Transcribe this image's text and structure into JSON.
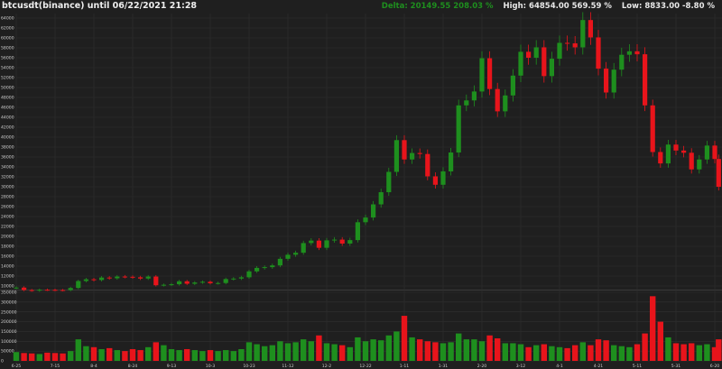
{
  "header": {
    "title": "btcusdt(binance) until 06/22/2021 21:28",
    "delta": "Delta: 20149.55 208.03 %",
    "high": "High: 64854.00 569.59 %",
    "low": "Low: 8833.00 -8.80 %"
  },
  "colors": {
    "background": "#1f1f1f",
    "grid": "#303030",
    "up": "#1e8f1e",
    "down": "#e8141b",
    "delta": "#1e8f1e"
  },
  "chart_data": [
    {
      "type": "candlestick",
      "title": "btcusdt(binance) until 06/22/2021 21:28",
      "ylim": [
        8833,
        64854
      ],
      "grid": true,
      "y_ticks": [
        10000,
        12000,
        14000,
        16000,
        18000,
        20000,
        22000,
        24000,
        26000,
        28000,
        30000,
        32000,
        34000,
        36000,
        38000,
        40000,
        42000,
        44000,
        46000,
        48000,
        50000,
        52000,
        54000,
        56000,
        58000,
        60000,
        62000,
        64000
      ],
      "x_ticks": [
        {
          "label": "6-25",
          "date": "2020-06-25"
        },
        {
          "label": "7-15",
          "date": "2020-07-15"
        },
        {
          "label": "8-4",
          "date": "2020-08-04"
        },
        {
          "label": "8-24",
          "date": "2020-08-24"
        },
        {
          "label": "9-13",
          "date": "2020-09-13"
        },
        {
          "label": "10-3",
          "date": "2020-10-03"
        },
        {
          "label": "10-23",
          "date": "2020-10-23"
        },
        {
          "label": "11-12",
          "date": "2020-11-12"
        },
        {
          "label": "12-2",
          "date": "2020-12-02"
        },
        {
          "label": "12-22",
          "date": "2020-12-22"
        },
        {
          "label": "1-11",
          "date": "2021-01-11"
        },
        {
          "label": "1-31",
          "date": "2021-01-31"
        },
        {
          "label": "2-20",
          "date": "2021-02-20"
        },
        {
          "label": "3-12",
          "date": "2021-03-12"
        },
        {
          "label": "4-1",
          "date": "2021-04-01"
        },
        {
          "label": "4-21",
          "date": "2021-04-21"
        },
        {
          "label": "5-11",
          "date": "2021-05-11"
        },
        {
          "label": "5-31",
          "date": "2021-05-31"
        },
        {
          "label": "6-20",
          "date": "2021-06-20"
        }
      ],
      "candles": [
        [
          "2020-06-25",
          9680,
          45000
        ],
        [
          "2020-06-29",
          9180,
          40000
        ],
        [
          "2020-07-03",
          9070,
          38000
        ],
        [
          "2020-07-07",
          9250,
          35000
        ],
        [
          "2020-07-11",
          9230,
          42000
        ],
        [
          "2020-07-15",
          9190,
          40000
        ],
        [
          "2020-07-19",
          9170,
          38000
        ],
        [
          "2020-07-23",
          9600,
          50000
        ],
        [
          "2020-07-27",
          11000,
          110000
        ],
        [
          "2020-07-31",
          11350,
          75000
        ],
        [
          "2020-08-04",
          11200,
          70000
        ],
        [
          "2020-08-08",
          11700,
          60000
        ],
        [
          "2020-08-12",
          11550,
          65000
        ],
        [
          "2020-08-16",
          11900,
          55000
        ],
        [
          "2020-08-20",
          11850,
          50000
        ],
        [
          "2020-08-24",
          11750,
          60000
        ],
        [
          "2020-08-28",
          11500,
          55000
        ],
        [
          "2020-09-01",
          11900,
          70000
        ],
        [
          "2020-09-05",
          10150,
          95000
        ],
        [
          "2020-09-09",
          10250,
          80000
        ],
        [
          "2020-09-13",
          10350,
          60000
        ],
        [
          "2020-09-17",
          10950,
          55000
        ],
        [
          "2020-09-21",
          10450,
          60000
        ],
        [
          "2020-09-25",
          10700,
          55000
        ],
        [
          "2020-09-29",
          10850,
          50000
        ],
        [
          "2020-10-03",
          10550,
          55000
        ],
        [
          "2020-10-07",
          10600,
          50000
        ],
        [
          "2020-10-11",
          11400,
          55000
        ],
        [
          "2020-10-15",
          11500,
          50000
        ],
        [
          "2020-10-19",
          11750,
          60000
        ],
        [
          "2020-10-23",
          12950,
          95000
        ],
        [
          "2020-10-27",
          13650,
          85000
        ],
        [
          "2020-10-31",
          13800,
          75000
        ],
        [
          "2020-11-04",
          14150,
          80000
        ],
        [
          "2020-11-08",
          15480,
          100000
        ],
        [
          "2020-11-12",
          16300,
          90000
        ],
        [
          "2020-11-16",
          16700,
          95000
        ],
        [
          "2020-11-20",
          18650,
          110000
        ],
        [
          "2020-11-24",
          19150,
          100000
        ],
        [
          "2020-11-28",
          17700,
          130000
        ],
        [
          "2020-12-02",
          19200,
          90000
        ],
        [
          "2020-12-06",
          19350,
          85000
        ],
        [
          "2020-12-10",
          18550,
          80000
        ],
        [
          "2020-12-14",
          19250,
          70000
        ],
        [
          "2020-12-18",
          22850,
          120000
        ],
        [
          "2020-12-22",
          23800,
          100000
        ],
        [
          "2020-12-26",
          26450,
          110000
        ],
        [
          "2020-12-30",
          28900,
          105000
        ],
        [
          "2021-01-03",
          33000,
          130000
        ],
        [
          "2021-01-07",
          39400,
          150000
        ],
        [
          "2021-01-11",
          35500,
          230000
        ],
        [
          "2021-01-15",
          36800,
          120000
        ],
        [
          "2021-01-19",
          36600,
          110000
        ],
        [
          "2021-01-23",
          32100,
          100000
        ],
        [
          "2021-01-27",
          30400,
          95000
        ],
        [
          "2021-01-31",
          33100,
          90000
        ],
        [
          "2021-02-04",
          36900,
          95000
        ],
        [
          "2021-02-08",
          46400,
          140000
        ],
        [
          "2021-02-12",
          47400,
          110000
        ],
        [
          "2021-02-16",
          49200,
          110000
        ],
        [
          "2021-02-20",
          55900,
          100000
        ],
        [
          "2021-02-24",
          49700,
          130000
        ],
        [
          "2021-02-28",
          45200,
          115000
        ],
        [
          "2021-03-04",
          48400,
          90000
        ],
        [
          "2021-03-08",
          52400,
          90000
        ],
        [
          "2021-03-12",
          57200,
          85000
        ],
        [
          "2021-03-16",
          56000,
          70000
        ],
        [
          "2021-03-20",
          58100,
          80000
        ],
        [
          "2021-03-24",
          52300,
          85000
        ],
        [
          "2021-03-28",
          55800,
          75000
        ],
        [
          "2021-04-01",
          59000,
          70000
        ],
        [
          "2021-04-05",
          58900,
          65000
        ],
        [
          "2021-04-09",
          58100,
          80000
        ],
        [
          "2021-04-13",
          63600,
          95000
        ],
        [
          "2021-04-17",
          60100,
          80000
        ],
        [
          "2021-04-21",
          53800,
          110000
        ],
        [
          "2021-04-25",
          49000,
          105000
        ],
        [
          "2021-04-29",
          53600,
          80000
        ],
        [
          "2021-05-03",
          56600,
          75000
        ],
        [
          "2021-05-07",
          57300,
          70000
        ],
        [
          "2021-05-11",
          56700,
          85000
        ],
        [
          "2021-05-15",
          46400,
          140000
        ],
        [
          "2021-05-19",
          37000,
          330000
        ],
        [
          "2021-05-23",
          34700,
          200000
        ],
        [
          "2021-05-27",
          38500,
          120000
        ],
        [
          "2021-05-31",
          37300,
          90000
        ],
        [
          "2021-06-04",
          36850,
          85000
        ],
        [
          "2021-06-08",
          33500,
          90000
        ],
        [
          "2021-06-12",
          35500,
          80000
        ],
        [
          "2021-06-16",
          38300,
          85000
        ],
        [
          "2021-06-20",
          35600,
          70000
        ],
        [
          "2021-06-22",
          30000,
          110000
        ]
      ]
    },
    {
      "type": "bar",
      "ylim": [
        0,
        350000
      ],
      "y_ticks": [
        0,
        50000,
        100000,
        150000,
        200000,
        250000,
        300000,
        350000
      ]
    }
  ]
}
